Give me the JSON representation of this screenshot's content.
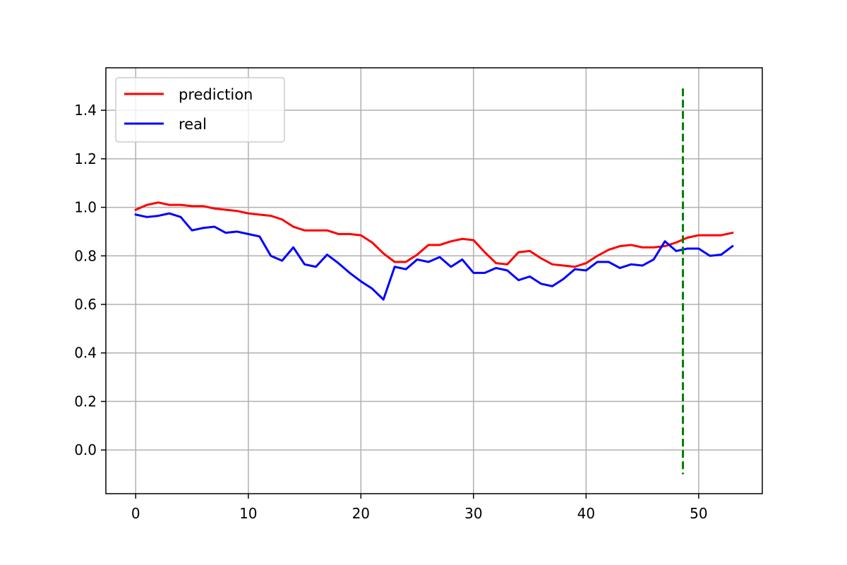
{
  "chart_data": {
    "type": "line",
    "title": "",
    "xlabel": "",
    "ylabel": "",
    "xlim": [
      -2.65,
      55.65
    ],
    "ylim": [
      -0.18,
      1.575
    ],
    "grid": true,
    "legend_position": "top-left",
    "x_ticks": [
      0,
      10,
      20,
      30,
      40,
      50
    ],
    "y_ticks": [
      0.0,
      0.2,
      0.4,
      0.6,
      0.8,
      1.0,
      1.2,
      1.4
    ],
    "series": [
      {
        "name": "prediction",
        "color": "#ff0000",
        "x": [
          0,
          1,
          2,
          3,
          4,
          5,
          6,
          7,
          8,
          9,
          10,
          11,
          12,
          13,
          14,
          15,
          16,
          17,
          18,
          19,
          20,
          21,
          22,
          23,
          24,
          25,
          26,
          27,
          28,
          29,
          30,
          31,
          32,
          33,
          34,
          35,
          36,
          37,
          38,
          39,
          40,
          41,
          42,
          43,
          44,
          45,
          46,
          47,
          48,
          49,
          50,
          51,
          52,
          53
        ],
        "values": [
          0.99,
          1.01,
          1.02,
          1.01,
          1.01,
          1.005,
          1.005,
          0.995,
          0.99,
          0.985,
          0.975,
          0.97,
          0.965,
          0.95,
          0.92,
          0.905,
          0.905,
          0.905,
          0.89,
          0.89,
          0.885,
          0.855,
          0.81,
          0.775,
          0.775,
          0.805,
          0.845,
          0.845,
          0.86,
          0.87,
          0.865,
          0.815,
          0.77,
          0.765,
          0.815,
          0.82,
          0.79,
          0.765,
          0.76,
          0.755,
          0.77,
          0.8,
          0.825,
          0.84,
          0.845,
          0.835,
          0.835,
          0.84,
          0.855,
          0.875,
          0.885,
          0.885,
          0.885,
          0.895
        ]
      },
      {
        "name": "real",
        "color": "#0000ff",
        "x": [
          0,
          1,
          2,
          3,
          4,
          5,
          6,
          7,
          8,
          9,
          10,
          11,
          12,
          13,
          14,
          15,
          16,
          17,
          18,
          19,
          20,
          21,
          22,
          23,
          24,
          25,
          26,
          27,
          28,
          29,
          30,
          31,
          32,
          33,
          34,
          35,
          36,
          37,
          38,
          39,
          40,
          41,
          42,
          43,
          44,
          45,
          46,
          47,
          48,
          49,
          50,
          51,
          52,
          53
        ],
        "values": [
          0.97,
          0.96,
          0.965,
          0.975,
          0.96,
          0.905,
          0.915,
          0.92,
          0.895,
          0.9,
          0.89,
          0.88,
          0.8,
          0.78,
          0.835,
          0.765,
          0.755,
          0.805,
          0.77,
          0.73,
          0.695,
          0.665,
          0.62,
          0.755,
          0.745,
          0.785,
          0.775,
          0.795,
          0.755,
          0.785,
          0.73,
          0.73,
          0.75,
          0.74,
          0.7,
          0.715,
          0.685,
          0.675,
          0.705,
          0.745,
          0.74,
          0.775,
          0.775,
          0.75,
          0.765,
          0.76,
          0.785,
          0.86,
          0.82,
          0.83,
          0.83,
          0.8,
          0.805,
          0.84
        ]
      }
    ],
    "vertical_marker": {
      "x": 48.6,
      "y_start": -0.1,
      "y_end": 1.49,
      "color": "#008000",
      "style": "dashed"
    }
  }
}
